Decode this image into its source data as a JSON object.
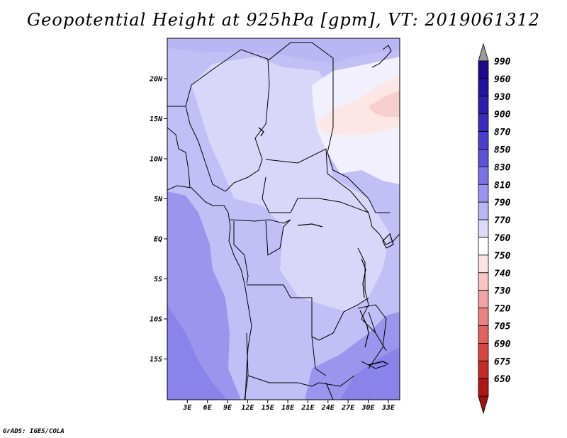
{
  "title": "Geopotential Height at 925hPa [gpm], VT: 2019061312",
  "credit": "GrADS: IGES/COLA",
  "map": {
    "lat_ticks": [
      {
        "value": 20,
        "label": "20N"
      },
      {
        "value": 15,
        "label": "15N"
      },
      {
        "value": 10,
        "label": "10N"
      },
      {
        "value": 5,
        "label": "5N"
      },
      {
        "value": 0,
        "label": "EQ"
      },
      {
        "value": -5,
        "label": "5S"
      },
      {
        "value": -10,
        "label": "10S"
      },
      {
        "value": -15,
        "label": "15S"
      }
    ],
    "lon_ticks": [
      {
        "value": 3,
        "label": "3E"
      },
      {
        "value": 6,
        "label": "6E"
      },
      {
        "value": 9,
        "label": "9E"
      },
      {
        "value": 12,
        "label": "12E"
      },
      {
        "value": 15,
        "label": "15E"
      },
      {
        "value": 18,
        "label": "18E"
      },
      {
        "value": 21,
        "label": "21E"
      },
      {
        "value": 24,
        "label": "24E"
      },
      {
        "value": 27,
        "label": "27E"
      },
      {
        "value": 30,
        "label": "30E"
      },
      {
        "value": 33,
        "label": "33E"
      }
    ]
  },
  "colorbar": {
    "levels": [
      {
        "label": "990",
        "color": "#1e0a8c"
      },
      {
        "label": "960",
        "color": "#2412a0"
      },
      {
        "label": "930",
        "color": "#2c1cb0"
      },
      {
        "label": "900",
        "color": "#3a2cc0"
      },
      {
        "label": "870",
        "color": "#4a3fcc"
      },
      {
        "label": "850",
        "color": "#5c52d8"
      },
      {
        "label": "830",
        "color": "#7a72e6"
      },
      {
        "label": "810",
        "color": "#9a94ee"
      },
      {
        "label": "790",
        "color": "#bab6f4"
      },
      {
        "label": "770",
        "color": "#dcdaf9"
      },
      {
        "label": "760",
        "color": "#ffffff"
      },
      {
        "label": "750",
        "color": "#fde4e4"
      },
      {
        "label": "740",
        "color": "#f8c4c4"
      },
      {
        "label": "730",
        "color": "#f2a4a4"
      },
      {
        "label": "720",
        "color": "#ea8282"
      },
      {
        "label": "705",
        "color": "#e26262"
      },
      {
        "label": "690",
        "color": "#d84444"
      },
      {
        "label": "675",
        "color": "#c82828"
      },
      {
        "label": "650",
        "color": "#b01414"
      }
    ],
    "top_arrow_color": "#9a9a9a",
    "bottom_arrow_color": "#a01010"
  }
}
